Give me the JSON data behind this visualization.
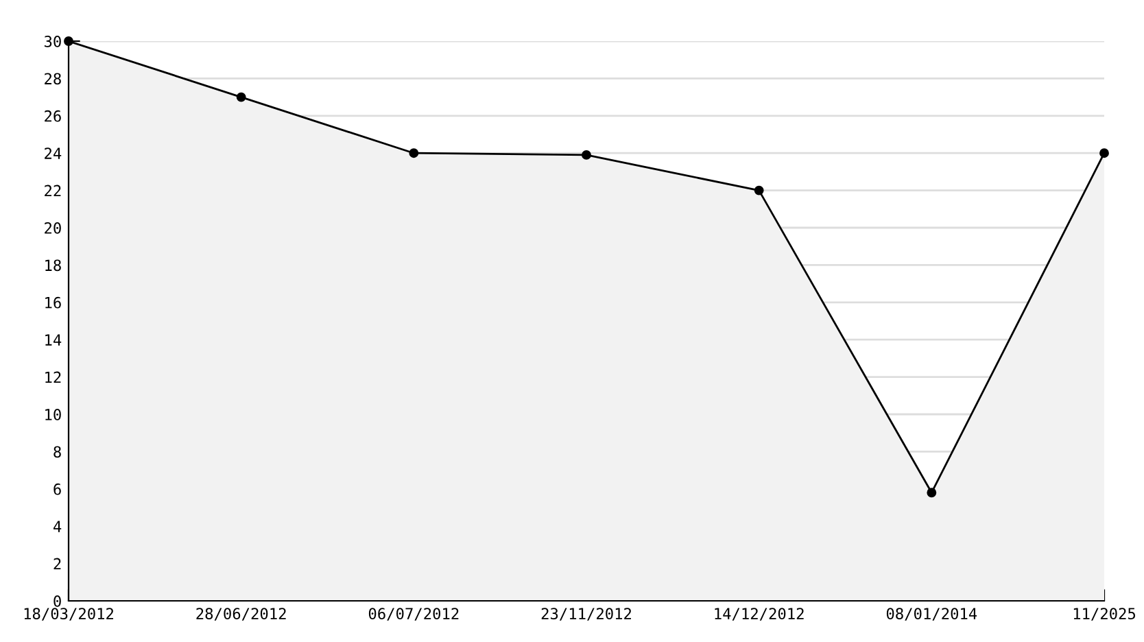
{
  "chart_data": {
    "type": "area",
    "categories": [
      "18/03/2012",
      "28/06/2012",
      "06/07/2012",
      "23/11/2012",
      "14/12/2012",
      "08/01/2014",
      "11/2025"
    ],
    "series": [
      {
        "color": "#000000",
        "values": [
          30,
          27,
          24,
          23.9,
          22,
          5.8,
          24
        ]
      }
    ],
    "ylim": [
      0,
      30
    ],
    "yticks": [
      0,
      2,
      4,
      6,
      8,
      10,
      12,
      14,
      16,
      18,
      20,
      22,
      24,
      26,
      28,
      30
    ],
    "grid": "y",
    "marker": "circle",
    "line_style": "solid"
  }
}
